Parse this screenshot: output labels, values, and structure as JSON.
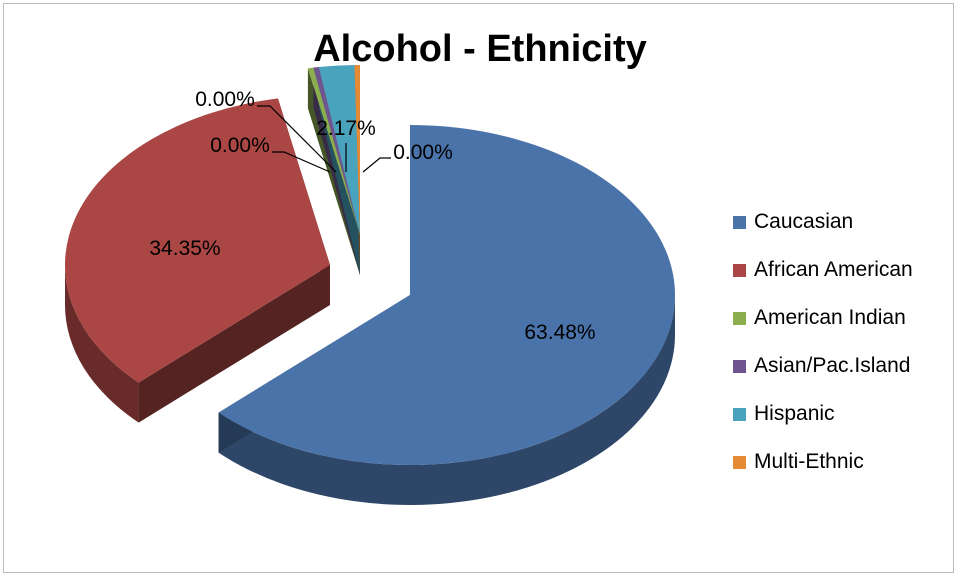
{
  "chart_data": {
    "type": "pie",
    "title": "Alcohol - Ethnicity",
    "categories": [
      "Caucasian",
      "African American",
      "American Indian",
      "Asian/Pac.Island",
      "Hispanic",
      "Multi-Ethnic"
    ],
    "values": [
      63.48,
      34.35,
      0.0,
      0.0,
      2.17,
      0.0
    ],
    "data_labels": [
      "63.48%",
      "34.35%",
      "0.00%",
      "0.00%",
      "2.17%",
      "0.00%"
    ],
    "colors": [
      "#4a73aa",
      "#aa4644",
      "#8cae4e",
      "#6e5590",
      "#4aa3bd",
      "#e48934"
    ],
    "three_d": true,
    "exploded": true,
    "legend_position": "right"
  }
}
